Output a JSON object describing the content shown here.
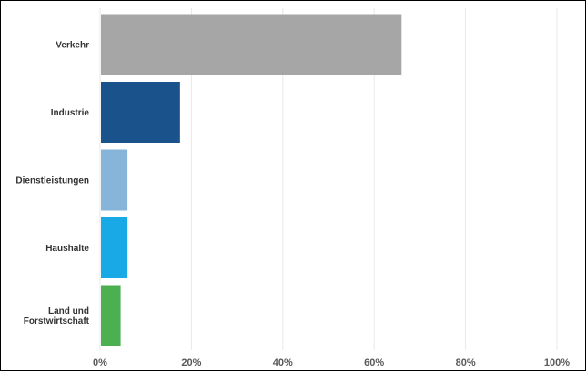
{
  "chart_data": {
    "type": "bar",
    "orientation": "horizontal",
    "categories": [
      "Verkehr",
      "Industrie",
      "Dienstleistungen",
      "Haushalte",
      "Land und Forstwirtschaft"
    ],
    "category_lines": [
      [
        "Verkehr"
      ],
      [
        "Industrie"
      ],
      [
        "Dienstleistungen"
      ],
      [
        "Haushalte"
      ],
      [
        "Land und",
        "Forstwirtschaft"
      ]
    ],
    "values": [
      66,
      17.5,
      6,
      6,
      4.5
    ],
    "colors": [
      "#a5a6a5",
      "#1a538b",
      "#86b5d9",
      "#19a9e6",
      "#4caf50"
    ],
    "title": "",
    "xlabel": "",
    "ylabel": "",
    "xlim": [
      0,
      100
    ],
    "ticks": [
      0,
      20,
      40,
      60,
      80,
      100
    ],
    "tick_labels": [
      "0%",
      "20%",
      "40%",
      "60%",
      "80%",
      "100%"
    ],
    "grid": true,
    "legend": "none"
  }
}
